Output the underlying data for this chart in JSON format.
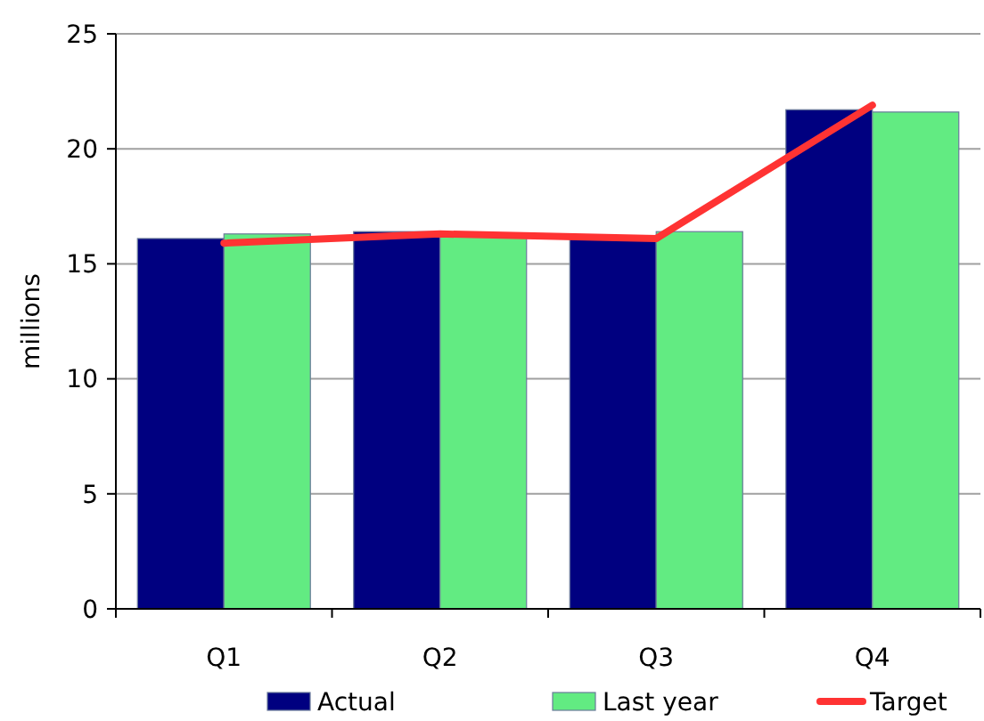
{
  "chart_data": {
    "type": "bar",
    "ylabel": "millions",
    "categories": [
      "Q1",
      "Q2",
      "Q3",
      "Q4"
    ],
    "series": [
      {
        "name": "Actual",
        "color": "#000080",
        "values": [
          16.1,
          16.4,
          16.2,
          21.7
        ]
      },
      {
        "name": "Last year",
        "color": "#62eb82",
        "values": [
          16.3,
          16.2,
          16.4,
          21.6
        ]
      },
      {
        "name": "Target",
        "type": "line",
        "color": "#ff3333",
        "values": [
          15.9,
          16.3,
          16.1,
          21.9
        ]
      }
    ],
    "ylim": [
      0,
      25
    ],
    "yticks": [
      0,
      5,
      10,
      15,
      20,
      25
    ],
    "grid": "y",
    "legend": "bottom",
    "marker": "none"
  }
}
